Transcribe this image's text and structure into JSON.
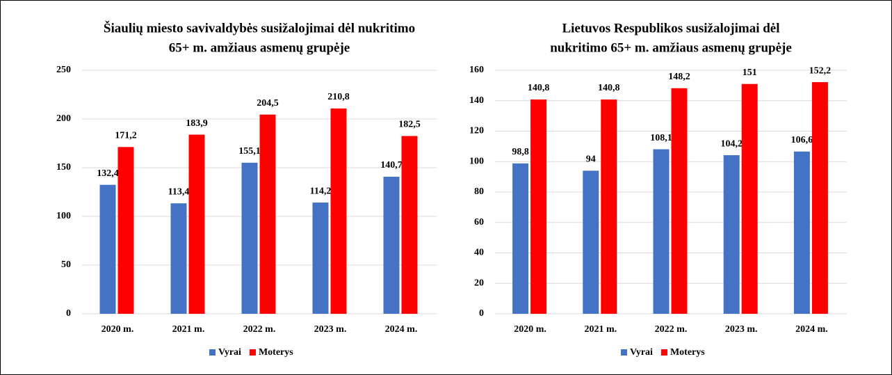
{
  "chart_data": [
    {
      "type": "bar",
      "title": [
        "Šiaulių miesto savivaldybės susižalojimai dėl nukritimo",
        "65+ m. amžiaus asmenų grupėje"
      ],
      "categories": [
        "2020 m.",
        "2021 m.",
        "2022 m.",
        "2023 m.",
        "2024 m."
      ],
      "series": [
        {
          "name": "Vyrai",
          "color": "#4472c4",
          "values": [
            132.4,
            113.4,
            155.1,
            114.2,
            140.7
          ],
          "value_labels": [
            "132,4",
            "113,4",
            "155,1",
            "114,2",
            "140,7"
          ]
        },
        {
          "name": "Moterys",
          "color": "#ff0000",
          "values": [
            171.2,
            183.9,
            204.5,
            210.8,
            182.5
          ],
          "value_labels": [
            "171,2",
            "183,9",
            "204,5",
            "210,8",
            "182,5"
          ]
        }
      ],
      "ylim": [
        0,
        250
      ],
      "yticks": [
        0,
        50,
        100,
        150,
        200,
        250
      ],
      "grid": true,
      "legend": "bottom"
    },
    {
      "type": "bar",
      "title": [
        "Lietuvos Respublikos susižalojimai dėl",
        "nukritimo 65+ m. amžiaus asmenų grupėje"
      ],
      "categories": [
        "2020 m.",
        "2021 m.",
        "2022 m.",
        "2023 m.",
        "2024 m."
      ],
      "series": [
        {
          "name": "Vyrai",
          "color": "#4472c4",
          "values": [
            98.8,
            94,
            108.1,
            104.2,
            106.6
          ],
          "value_labels": [
            "98,8",
            "94",
            "108,1",
            "104,2",
            "106,6"
          ]
        },
        {
          "name": "Moterys",
          "color": "#ff0000",
          "values": [
            140.8,
            140.8,
            148.2,
            151,
            152.2
          ],
          "value_labels": [
            "140,8",
            "140,8",
            "148,2",
            "151",
            "152,2"
          ]
        }
      ],
      "ylim": [
        0,
        160
      ],
      "yticks": [
        0,
        20,
        40,
        60,
        80,
        100,
        120,
        140,
        160
      ],
      "grid": true,
      "legend": "bottom"
    }
  ]
}
